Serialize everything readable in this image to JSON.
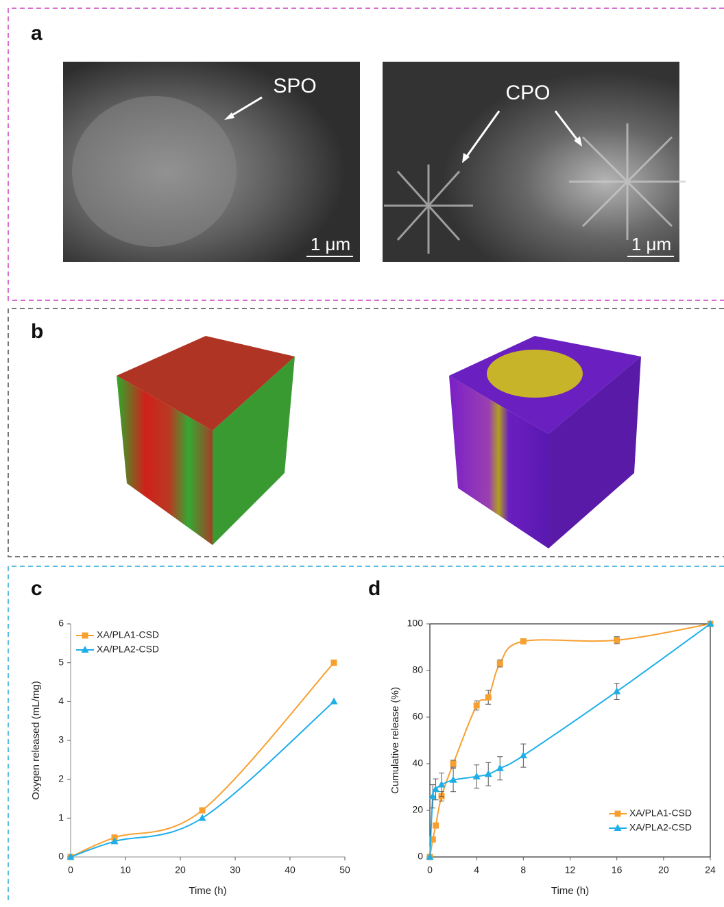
{
  "panel_labels": [
    "a",
    "b",
    "c",
    "d"
  ],
  "image_labels": [
    "SPO",
    "CPO"
  ],
  "scale_bars": [
    "1 μm",
    "1 μm"
  ],
  "chart_data": [
    {
      "type": "line",
      "xlabel": "Time (h)",
      "ylabel": "Oxygen released (mL/mg)",
      "x": [
        0,
        8,
        24,
        48
      ],
      "series": [
        {
          "name": "XA/PLA1-CSD",
          "color": "#f7a030",
          "marker": "square",
          "values": [
            0,
            0.5,
            1.2,
            5
          ]
        },
        {
          "name": "XA/PLA2-CSD",
          "color": "#1eaee8",
          "marker": "triangle",
          "values": [
            0,
            0.4,
            1.0,
            4
          ]
        }
      ],
      "xlim": [
        0,
        50
      ],
      "xticks": [
        0,
        10,
        20,
        30,
        40,
        50
      ],
      "ylim": [
        0,
        6
      ],
      "yticks": [
        0,
        1,
        2,
        3,
        4,
        5,
        6
      ],
      "smooth": true,
      "frame": false,
      "legend": "upper left"
    },
    {
      "type": "line",
      "xlabel": "Time (h)",
      "ylabel": "Cumulative release (%)",
      "x": [
        0,
        0.25,
        0.5,
        1,
        2,
        4,
        5,
        6,
        8,
        16,
        24
      ],
      "series": [
        {
          "name": "XA/PLA1-CSD",
          "color": "#f7a030",
          "marker": "square",
          "values": [
            0,
            7.5,
            13.5,
            26,
            40,
            65,
            68.5,
            83,
            92.5,
            93,
            100
          ],
          "errors": [
            0,
            1,
            1,
            2,
            1.5,
            2,
            3,
            1.5,
            0.5,
            1.5,
            0
          ]
        },
        {
          "name": "XA/PLA2-CSD",
          "color": "#1eaee8",
          "marker": "triangle",
          "values": [
            0,
            26,
            29,
            31,
            33,
            34.5,
            35.5,
            38,
            43.5,
            71,
            100
          ],
          "errors": [
            0,
            5,
            4.5,
            5,
            5,
            5,
            5,
            5,
            5,
            3.5,
            0
          ]
        }
      ],
      "xlim": [
        0,
        24
      ],
      "xticks": [
        0,
        4,
        8,
        12,
        16,
        20,
        24
      ],
      "ylim": [
        0,
        100
      ],
      "yticks": [
        0,
        20,
        40,
        60,
        80,
        100
      ],
      "smooth": true,
      "frame": true,
      "legend": "lower right"
    }
  ]
}
